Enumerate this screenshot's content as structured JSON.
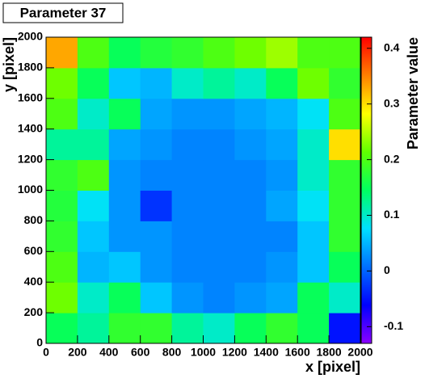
{
  "chart_data": {
    "type": "heatmap",
    "title": "Parameter 37",
    "x_label": "x [pixel]",
    "y_label": "y [pixel]",
    "z_label": "Parameter value",
    "xbins": [
      0,
      200,
      400,
      600,
      800,
      1000,
      1200,
      1400,
      1600,
      1800,
      2000
    ],
    "ybins": [
      0,
      200,
      400,
      600,
      800,
      1000,
      1200,
      1400,
      1600,
      1800,
      2000
    ],
    "z": [
      [
        0.15,
        0.12,
        0.18,
        0.18,
        0.12,
        0.1,
        0.15,
        0.18,
        0.15,
        -0.05
      ],
      [
        0.22,
        0.1,
        0.15,
        0.06,
        0.03,
        0.02,
        0.03,
        0.04,
        0.15,
        0.1
      ],
      [
        0.2,
        0.05,
        0.06,
        0.03,
        0.02,
        0.02,
        0.02,
        0.03,
        0.06,
        0.15
      ],
      [
        0.18,
        0.06,
        0.03,
        0.03,
        0.02,
        0.02,
        0.02,
        0.02,
        0.06,
        0.18
      ],
      [
        0.17,
        0.08,
        0.03,
        -0.03,
        0.02,
        0.02,
        0.02,
        0.04,
        0.08,
        0.18
      ],
      [
        0.18,
        0.2,
        0.03,
        0.02,
        0.02,
        0.02,
        0.02,
        0.03,
        0.1,
        0.18
      ],
      [
        0.12,
        0.12,
        0.04,
        0.03,
        0.02,
        0.02,
        0.03,
        0.04,
        0.1,
        0.3
      ],
      [
        0.2,
        0.1,
        0.15,
        0.04,
        0.03,
        0.03,
        0.04,
        0.05,
        0.08,
        0.2
      ],
      [
        0.22,
        0.15,
        0.06,
        0.05,
        0.1,
        0.12,
        0.1,
        0.15,
        0.22,
        0.18
      ],
      [
        0.33,
        0.2,
        0.15,
        0.17,
        0.18,
        0.2,
        0.22,
        0.24,
        0.2,
        0.2
      ]
    ],
    "xlim": [
      0,
      2000
    ],
    "ylim": [
      0,
      2000
    ],
    "xticks": [
      0,
      200,
      400,
      600,
      800,
      1000,
      1200,
      1400,
      1600,
      1800,
      2000
    ],
    "yticks": [
      0,
      200,
      400,
      600,
      800,
      1000,
      1200,
      1400,
      1600,
      1800,
      2000
    ],
    "zlim": [
      -0.13,
      0.42
    ],
    "zticks": [
      -0.1,
      0,
      0.1,
      0.2,
      0.3,
      0.4
    ],
    "colorscale": [
      "#8a00ff",
      "#0000ff",
      "#0070ff",
      "#00e0ff",
      "#00ff60",
      "#60ff00",
      "#ffff00",
      "#ff8000",
      "#ff0000"
    ]
  }
}
